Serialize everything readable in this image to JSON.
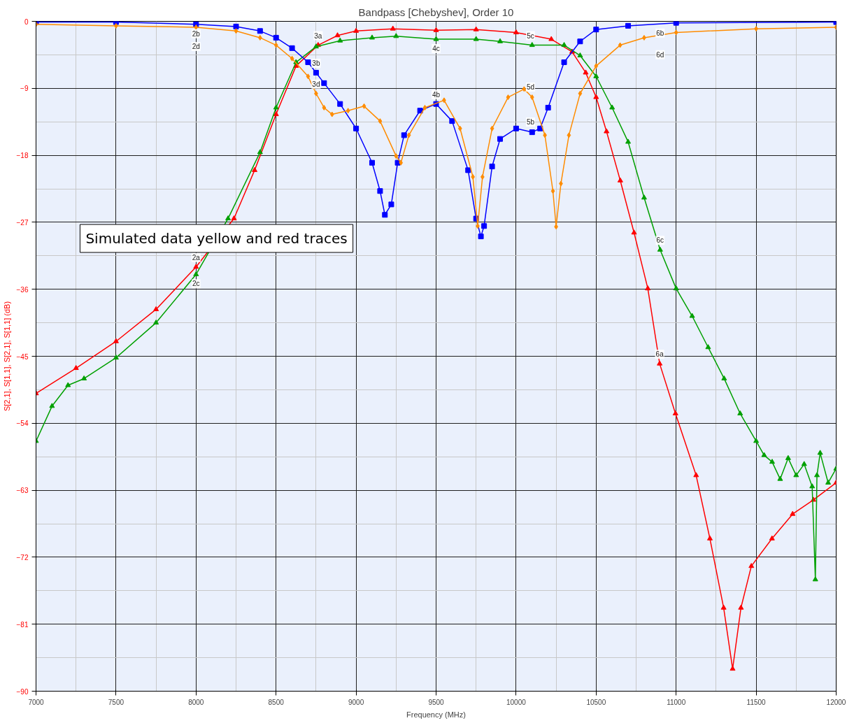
{
  "chart_data": {
    "type": "line",
    "title": "Bandpass [Chebyshev], Order 10",
    "xlabel": "Frequency (MHz)",
    "ylabel": "S[2,1], S[1,1], S[2,1], S[1,1] (dB)",
    "xlim": [
      7000,
      12000
    ],
    "ylim": [
      -90,
      0
    ],
    "xticks": [
      7000,
      7500,
      8000,
      8500,
      9000,
      9500,
      10000,
      10500,
      11000,
      11500,
      12000
    ],
    "yticks": [
      0,
      -9,
      -18,
      -27,
      -36,
      -45,
      -54,
      -63,
      -72,
      -81,
      -90
    ],
    "grid": true,
    "line_style": "solid",
    "series": [
      {
        "color": "#ff0000",
        "marker": "triangle",
        "x": [
          7000,
          7250,
          7500,
          7750,
          8000,
          8237,
          8366,
          8500,
          8625,
          8763,
          8884,
          9000,
          9230,
          9500,
          9750,
          10000,
          10220,
          10350,
          10435,
          10500,
          10565,
          10651,
          10737,
          10823,
          10897,
          10996,
          11125,
          11211,
          11297,
          11353,
          11405,
          11470,
          11599,
          11728,
          11858,
          12000
        ],
        "values": [
          -50.0,
          -46.6,
          -43.0,
          -38.7,
          -33.0,
          -26.5,
          -20.0,
          -12.5,
          -6.0,
          -3.2,
          -1.9,
          -1.3,
          -1.0,
          -1.2,
          -1.1,
          -1.5,
          -2.4,
          -4.1,
          -6.9,
          -10.2,
          -14.8,
          -21.4,
          -28.4,
          -35.9,
          -46.0,
          -52.7,
          -61.0,
          -69.5,
          -78.8,
          -87.0,
          -78.8,
          -73.2,
          -69.5,
          -66.2,
          -64.3,
          -62.0
        ]
      },
      {
        "color": "#00a000",
        "marker": "triangle",
        "x": [
          7000,
          7100,
          7200,
          7300,
          7500,
          7750,
          8000,
          8200,
          8400,
          8500,
          8625,
          8750,
          8900,
          9100,
          9250,
          9500,
          9750,
          9900,
          10100,
          10300,
          10400,
          10500,
          10600,
          10700,
          10800,
          10900,
          11000,
          11100,
          11200,
          11300,
          11400,
          11500,
          11550,
          11600,
          11650,
          11700,
          11750,
          11800,
          11850,
          11870,
          11880,
          11900,
          11950,
          12000
        ],
        "values": [
          -56.4,
          -51.7,
          -48.9,
          -48.0,
          -45.2,
          -40.5,
          -34.0,
          -26.5,
          -17.6,
          -11.6,
          -5.5,
          -3.4,
          -2.6,
          -2.2,
          -2.0,
          -2.4,
          -2.4,
          -2.7,
          -3.2,
          -3.2,
          -4.6,
          -7.4,
          -11.6,
          -16.2,
          -23.7,
          -30.7,
          -35.9,
          -39.6,
          -43.8,
          -48.0,
          -52.7,
          -56.4,
          -58.3,
          -59.2,
          -61.5,
          -58.7,
          -61.0,
          -59.5,
          -62.5,
          -75.0,
          -61.0,
          -58.0,
          -62.0,
          -60.1
        ]
      },
      {
        "color": "#0000ff",
        "marker": "square",
        "x": [
          7000,
          7500,
          8000,
          8250,
          8400,
          8500,
          8600,
          8700,
          8750,
          8800,
          8900,
          9000,
          9100,
          9150,
          9180,
          9220,
          9260,
          9300,
          9400,
          9500,
          9600,
          9700,
          9750,
          9780,
          9800,
          9850,
          9900,
          10000,
          10100,
          10150,
          10200,
          10300,
          10400,
          10500,
          10700,
          11000,
          12000
        ],
        "values": [
          -0.1,
          -0.1,
          -0.4,
          -0.7,
          -1.3,
          -2.2,
          -3.6,
          -5.5,
          -6.9,
          -8.3,
          -11.1,
          -14.4,
          -19.0,
          -22.8,
          -26.0,
          -24.6,
          -19.0,
          -15.3,
          -12.0,
          -11.1,
          -13.4,
          -20.0,
          -26.5,
          -28.9,
          -27.5,
          -19.5,
          -15.8,
          -14.4,
          -14.9,
          -14.4,
          -11.6,
          -5.5,
          -2.7,
          -1.1,
          -0.6,
          -0.2,
          -0.1
        ]
      },
      {
        "color": "#ff8c00",
        "marker": "diamond",
        "x": [
          7000,
          7500,
          8000,
          8250,
          8400,
          8500,
          8600,
          8700,
          8750,
          8800,
          8850,
          8950,
          9050,
          9150,
          9250,
          9280,
          9330,
          9430,
          9550,
          9650,
          9730,
          9760,
          9790,
          9850,
          9950,
          10050,
          10100,
          10180,
          10230,
          10250,
          10280,
          10330,
          10400,
          10500,
          10650,
          10800,
          11000,
          11500,
          12000
        ],
        "values": [
          -0.4,
          -0.6,
          -0.8,
          -1.3,
          -2.2,
          -3.2,
          -5.0,
          -7.4,
          -9.7,
          -11.6,
          -12.5,
          -12.0,
          -11.4,
          -13.4,
          -18.1,
          -19.0,
          -15.3,
          -11.6,
          -10.6,
          -14.4,
          -20.9,
          -27.5,
          -20.9,
          -14.4,
          -10.2,
          -9.1,
          -10.2,
          -15.3,
          -22.8,
          -27.6,
          -21.8,
          -15.3,
          -9.7,
          -6.0,
          -3.2,
          -2.2,
          -1.5,
          -1.0,
          -0.8
        ]
      }
    ],
    "annotations": [
      {
        "text": "2b",
        "x": 8000,
        "y": -0.4
      },
      {
        "text": "2d",
        "x": 8000,
        "y": -0.8
      },
      {
        "text": "2a",
        "x": 8000,
        "y": -33.0
      },
      {
        "text": "2c",
        "x": 8000,
        "y": -34.0
      },
      {
        "text": "3a",
        "x": 8763,
        "y": -3.2
      },
      {
        "text": "3b",
        "x": 8750,
        "y": -6.9
      },
      {
        "text": "3d",
        "x": 8750,
        "y": -9.7
      },
      {
        "text": "4c",
        "x": 9500,
        "y": -2.4
      },
      {
        "text": "4b",
        "x": 9500,
        "y": -11.1
      },
      {
        "text": "5c",
        "x": 10090,
        "y": -3.2
      },
      {
        "text": "5d",
        "x": 10090,
        "y": -10.1
      },
      {
        "text": "5b",
        "x": 10090,
        "y": -14.8
      },
      {
        "text": "6b",
        "x": 10900,
        "y": -0.3
      },
      {
        "text": "6d",
        "x": 10900,
        "y": -1.9
      },
      {
        "text": "6c",
        "x": 10900,
        "y": -30.7
      },
      {
        "text": "6a",
        "x": 10897,
        "y": -46.0
      },
      "Simulated data yellow and red traces"
    ]
  }
}
